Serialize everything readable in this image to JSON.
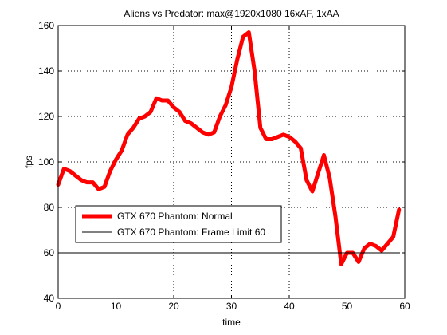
{
  "chart_data": {
    "type": "line",
    "title": "Aliens vs Predator: max@1920x1080 16xAF, 1xAA",
    "xlabel": "time",
    "ylabel": "fps",
    "xlim": [
      0,
      60
    ],
    "ylim": [
      40,
      160
    ],
    "xticks": [
      "0",
      "10",
      "20",
      "30",
      "40",
      "50",
      "60"
    ],
    "yticks": [
      "40",
      "60",
      "80",
      "100",
      "120",
      "140",
      "160"
    ],
    "grid": true,
    "legend_position": "lower-left",
    "series": [
      {
        "name": "GTX 670 Phantom: Normal",
        "color": "#ff0000",
        "x": [
          0,
          1,
          2,
          3,
          4,
          5,
          6,
          7,
          8,
          9,
          10,
          11,
          12,
          13,
          14,
          15,
          16,
          17,
          18,
          19,
          20,
          21,
          22,
          23,
          24,
          25,
          26,
          27,
          28,
          29,
          30,
          31,
          32,
          33,
          34,
          35,
          36,
          37,
          38,
          39,
          40,
          41,
          42,
          43,
          44,
          45,
          46,
          47,
          48,
          49,
          50,
          51,
          52,
          53,
          54,
          55,
          56,
          57,
          58,
          59
        ],
        "y": [
          90,
          97,
          96,
          94,
          92,
          91,
          91,
          88,
          89,
          96,
          101,
          105,
          112,
          115,
          119,
          120,
          122,
          128,
          127,
          127,
          124,
          122,
          118,
          117,
          115,
          113,
          112,
          113,
          120,
          125,
          133,
          145,
          155,
          157,
          140,
          115,
          110,
          110,
          111,
          112,
          111,
          109,
          106,
          92,
          87,
          95,
          103,
          93,
          76,
          55,
          60,
          60,
          56,
          62,
          64,
          63,
          61,
          64,
          67,
          79
        ]
      },
      {
        "name": "GTX 670 Phantom: Frame Limit 60",
        "color": "#000000",
        "x": [
          0,
          59
        ],
        "y": [
          60,
          60
        ]
      }
    ]
  }
}
